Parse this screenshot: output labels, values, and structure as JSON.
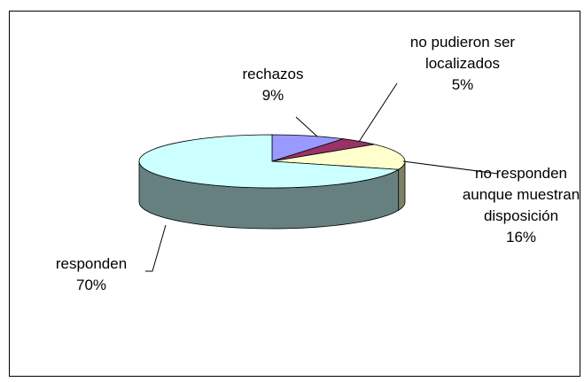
{
  "chart_data": {
    "type": "pie3d",
    "categories": [
      "rechazos",
      "no pudieron ser localizados",
      "no responden aunque muestran disposición",
      "responden"
    ],
    "values": [
      9,
      5,
      16,
      70
    ],
    "value_labels": [
      "9%",
      "5%",
      "16%",
      "70%"
    ],
    "colors": [
      "#9999ff",
      "#993366",
      "#ffffcc",
      "#ccffff"
    ]
  }
}
